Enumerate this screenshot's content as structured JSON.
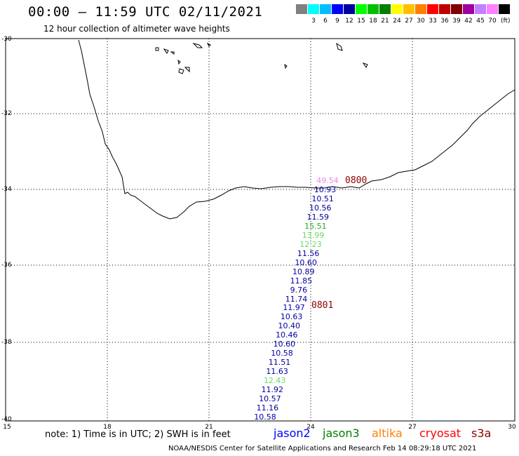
{
  "header": {
    "title": "00:00 – 11:59 UTC 02/11/2021",
    "subtitle": "12 hour collection of altimeter wave heights"
  },
  "legend": {
    "unit": "(ft)",
    "swatches": [
      {
        "color": "#808080",
        "label": ""
      },
      {
        "color": "#00ffff",
        "label": "3"
      },
      {
        "color": "#00bfff",
        "label": "6"
      },
      {
        "color": "#0000ff",
        "label": "9"
      },
      {
        "color": "#0000a0",
        "label": "12"
      },
      {
        "color": "#00ff00",
        "label": "15"
      },
      {
        "color": "#00c000",
        "label": "18"
      },
      {
        "color": "#008000",
        "label": "21"
      },
      {
        "color": "#ffff00",
        "label": "24"
      },
      {
        "color": "#ffc000",
        "label": "27"
      },
      {
        "color": "#ff8000",
        "label": "30"
      },
      {
        "color": "#ff0000",
        "label": "33"
      },
      {
        "color": "#c00000",
        "label": "36"
      },
      {
        "color": "#800000",
        "label": "39"
      },
      {
        "color": "#a000a0",
        "label": "42"
      },
      {
        "color": "#c080ff",
        "label": "45"
      },
      {
        "color": "#ff80ff",
        "label": "70"
      },
      {
        "color": "#000000",
        "label": ""
      }
    ]
  },
  "axes": {
    "lat_labels": [
      "-30",
      "-32",
      "-34",
      "-36",
      "-38",
      "-40"
    ],
    "lon_labels": [
      "15",
      "18",
      "21",
      "24",
      "27",
      "30"
    ]
  },
  "observations": [
    {
      "value": "49.54",
      "color": "#ee82ee"
    },
    {
      "value": "10.93",
      "color": "#0000a0"
    },
    {
      "value": "10.51",
      "color": "#0000a0"
    },
    {
      "value": "10.56",
      "color": "#0000a0"
    },
    {
      "value": "11.59",
      "color": "#0000a0"
    },
    {
      "value": "15.51",
      "color": "#22aa22"
    },
    {
      "value": "13.99",
      "color": "#66dd66"
    },
    {
      "value": "12.23",
      "color": "#66dd66"
    },
    {
      "value": "11.56",
      "color": "#0000a0"
    },
    {
      "value": "10.60",
      "color": "#0000a0"
    },
    {
      "value": "10.89",
      "color": "#0000a0"
    },
    {
      "value": "11.85",
      "color": "#0000a0"
    },
    {
      "value": "9.76",
      "color": "#0000a0"
    },
    {
      "value": "11.74",
      "color": "#0000a0"
    },
    {
      "value": "11.97",
      "color": "#0000a0"
    },
    {
      "value": "10.63",
      "color": "#0000a0"
    },
    {
      "value": "10.40",
      "color": "#0000a0"
    },
    {
      "value": "10.46",
      "color": "#0000a0"
    },
    {
      "value": "10.60",
      "color": "#0000a0"
    },
    {
      "value": "10.58",
      "color": "#0000a0"
    },
    {
      "value": "11.51",
      "color": "#0000a0"
    },
    {
      "value": "11.63",
      "color": "#0000a0"
    },
    {
      "value": "12.43",
      "color": "#66dd66"
    },
    {
      "value": "11.92",
      "color": "#0000a0"
    },
    {
      "value": "10.57",
      "color": "#0000a0"
    },
    {
      "value": "11.16",
      "color": "#0000a0"
    },
    {
      "value": "10.58",
      "color": "#0000a0"
    }
  ],
  "time_tags": [
    "0800",
    "0801"
  ],
  "note": "note: 1) Time is in UTC; 2) SWH is in feet",
  "satellites": [
    {
      "name": "jason2",
      "color": "#0000ff"
    },
    {
      "name": "jason3",
      "color": "#008000"
    },
    {
      "name": "altika",
      "color": "#ff8000"
    },
    {
      "name": "cryosat",
      "color": "#ff0000"
    },
    {
      "name": "s3a",
      "color": "#8b0000"
    }
  ],
  "footer": "NOAA/NESDIS Center for Satellite Applications and Research   Feb 14 08:29:18 UTC 2021"
}
